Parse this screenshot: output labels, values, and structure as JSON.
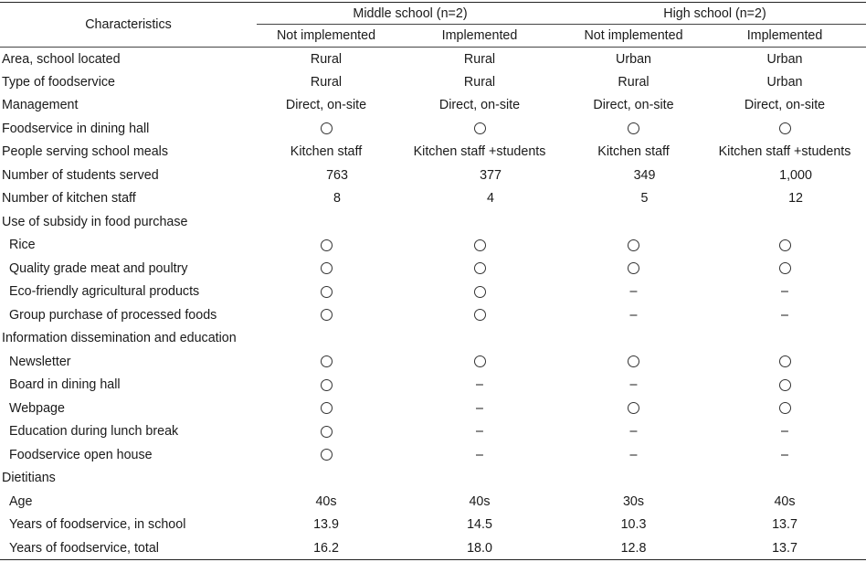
{
  "header": {
    "characteristics": "Characteristics",
    "middle_school": "Middle school (n=2)",
    "high_school": "High school (n=2)",
    "not_implemented": "Not implemented",
    "implemented": "Implemented"
  },
  "rows": [
    {
      "label": "Area, school located",
      "sub": false,
      "values": [
        "Rural",
        "Rural",
        "Urban",
        "Urban"
      ]
    },
    {
      "label": "Type of foodservice",
      "sub": false,
      "values": [
        "Rural",
        "Rural",
        "Rural",
        "Urban"
      ]
    },
    {
      "label": "Management",
      "sub": false,
      "values": [
        "Direct, on-site",
        "Direct, on-site",
        "Direct, on-site",
        "Direct, on-site"
      ]
    },
    {
      "label": "Foodservice in dining hall",
      "sub": false,
      "values": [
        "○",
        "○",
        "○",
        "○"
      ]
    },
    {
      "label": "People serving school meals",
      "sub": false,
      "values": [
        "Kitchen staff",
        "Kitchen staff +students",
        "Kitchen staff",
        "Kitchen staff +students"
      ]
    },
    {
      "label": "Number of students served",
      "sub": false,
      "numeric": true,
      "values": [
        "763",
        "377",
        "349",
        "1,000"
      ]
    },
    {
      "label": "Number of kitchen staff",
      "sub": false,
      "numeric": true,
      "values": [
        "8",
        "4",
        "5",
        "12"
      ]
    },
    {
      "label": "Use of subsidy in food purchase",
      "sub": false,
      "values": [
        "",
        "",
        "",
        ""
      ]
    },
    {
      "label": "Rice",
      "sub": true,
      "values": [
        "○",
        "○",
        "○",
        "○"
      ]
    },
    {
      "label": "Quality grade meat and poultry",
      "sub": true,
      "values": [
        "○",
        "○",
        "○",
        "○"
      ]
    },
    {
      "label": "Eco-friendly agricultural products",
      "sub": true,
      "values": [
        "○",
        "○",
        "–",
        "–"
      ]
    },
    {
      "label": "Group purchase of processed foods",
      "sub": true,
      "values": [
        "○",
        "○",
        "–",
        "–"
      ]
    },
    {
      "label": "Information dissemination and education",
      "sub": false,
      "values": [
        "",
        "",
        "",
        ""
      ]
    },
    {
      "label": "Newsletter",
      "sub": true,
      "values": [
        "○",
        "○",
        "○",
        "○"
      ]
    },
    {
      "label": "Board in dining hall",
      "sub": true,
      "values": [
        "○",
        "–",
        "–",
        "○"
      ]
    },
    {
      "label": "Webpage",
      "sub": true,
      "values": [
        "○",
        "–",
        "○",
        "○"
      ]
    },
    {
      "label": "Education during lunch break",
      "sub": true,
      "values": [
        "○",
        "–",
        "–",
        "–"
      ]
    },
    {
      "label": "Foodservice open house",
      "sub": true,
      "values": [
        "○",
        "–",
        "–",
        "–"
      ]
    },
    {
      "label": "Dietitians",
      "sub": false,
      "values": [
        "",
        "",
        "",
        ""
      ]
    },
    {
      "label": "Age",
      "sub": true,
      "values": [
        "40s",
        "40s",
        "30s",
        "40s"
      ]
    },
    {
      "label": "Years of foodservice, in school",
      "sub": true,
      "values": [
        "13.9",
        "14.5",
        "10.3",
        "13.7"
      ]
    },
    {
      "label": "Years of foodservice, total",
      "sub": true,
      "values": [
        "16.2",
        "18.0",
        "12.8",
        "13.7"
      ]
    }
  ]
}
